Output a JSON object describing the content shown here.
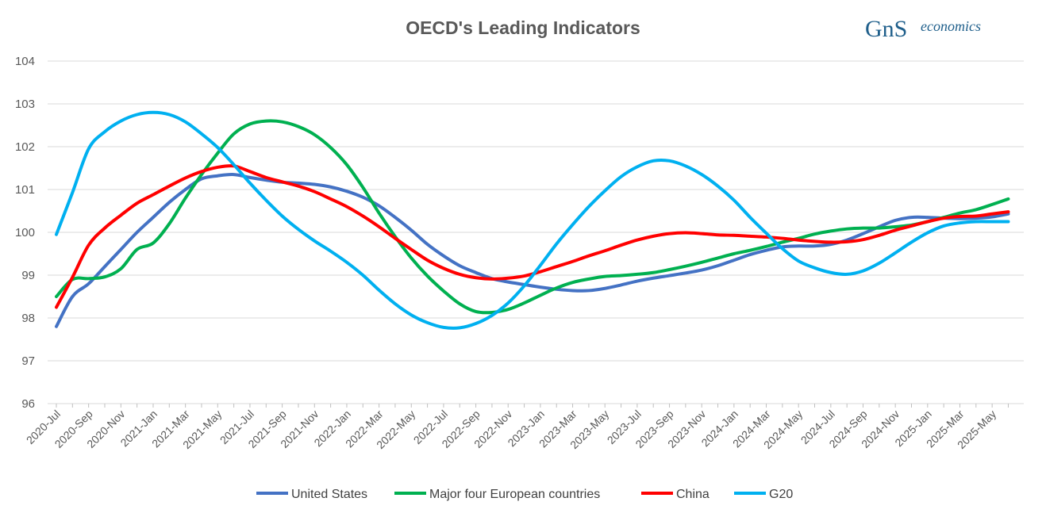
{
  "logo": {
    "mark": "GnS",
    "wordmark": "economics"
  },
  "chart_data": {
    "type": "line",
    "title": "OECD's Leading Indicators",
    "xlabel": "",
    "ylabel": "",
    "ylim": [
      96,
      104
    ],
    "yticks": [
      96,
      97,
      98,
      99,
      100,
      101,
      102,
      103,
      104
    ],
    "grid": true,
    "legend_position": "bottom",
    "categories": [
      "2020-Jul",
      "2020-Aug",
      "2020-Sep",
      "2020-Oct",
      "2020-Nov",
      "2020-Dec",
      "2021-Jan",
      "2021-Feb",
      "2021-Mar",
      "2021-Apr",
      "2021-May",
      "2021-Jun",
      "2021-Jul",
      "2021-Aug",
      "2021-Sep",
      "2021-Oct",
      "2021-Nov",
      "2021-Dec",
      "2022-Jan",
      "2022-Feb",
      "2022-Mar",
      "2022-Apr",
      "2022-May",
      "2022-Jun",
      "2022-Jul",
      "2022-Aug",
      "2022-Sep",
      "2022-Oct",
      "2022-Nov",
      "2022-Dec",
      "2023-Jan",
      "2023-Feb",
      "2023-Mar",
      "2023-Apr",
      "2023-May",
      "2023-Jun",
      "2023-Jul",
      "2023-Aug",
      "2023-Sep",
      "2023-Oct",
      "2023-Nov",
      "2023-Dec",
      "2024-Jan",
      "2024-Feb",
      "2024-Mar",
      "2024-Apr",
      "2024-May",
      "2024-Jun",
      "2024-Jul",
      "2024-Aug",
      "2024-Sep",
      "2024-Oct",
      "2024-Nov",
      "2024-Dec",
      "2025-Jan",
      "2025-Feb",
      "2025-Mar",
      "2025-Apr",
      "2025-May",
      "2025-Jun"
    ],
    "x_tick_labels": [
      "2020-Jul",
      "2020-Sep",
      "2020-Nov",
      "2021-Jan",
      "2021-Mar",
      "2021-May",
      "2021-Jul",
      "2021-Sep",
      "2021-Nov",
      "2022-Jan",
      "2022-Mar",
      "2022-May",
      "2022-Jul",
      "2022-Sep",
      "2022-Nov",
      "2023-Jan",
      "2023-Mar",
      "2023-May",
      "2023-Jul",
      "2023-Sep",
      "2023-Nov",
      "2024-Jan",
      "2024-Mar",
      "2024-May",
      "2024-Jul",
      "2024-Sep",
      "2024-Nov",
      "2025-Jan",
      "2025-Mar",
      "2025-May"
    ],
    "series": [
      {
        "name": "United States",
        "color": "#4472c4",
        "values": [
          97.8,
          98.5,
          98.8,
          99.2,
          99.6,
          100.0,
          100.35,
          100.7,
          101.0,
          101.25,
          101.32,
          101.35,
          101.28,
          101.22,
          101.17,
          101.15,
          101.12,
          101.06,
          100.96,
          100.82,
          100.62,
          100.35,
          100.05,
          99.72,
          99.45,
          99.22,
          99.06,
          98.92,
          98.84,
          98.78,
          98.72,
          98.67,
          98.64,
          98.64,
          98.69,
          98.77,
          98.86,
          98.93,
          98.99,
          99.05,
          99.12,
          99.22,
          99.35,
          99.48,
          99.58,
          99.66,
          99.68,
          99.68,
          99.72,
          99.82,
          99.97,
          100.13,
          100.28,
          100.35,
          100.35,
          100.33,
          100.32,
          100.33,
          100.36,
          100.43
        ]
      },
      {
        "name": "Major four European countries",
        "color": "#00b050",
        "values": [
          98.5,
          98.9,
          98.92,
          98.96,
          99.15,
          99.6,
          99.75,
          100.2,
          100.8,
          101.35,
          101.85,
          102.3,
          102.53,
          102.6,
          102.58,
          102.47,
          102.28,
          101.98,
          101.58,
          101.05,
          100.45,
          99.9,
          99.4,
          98.98,
          98.63,
          98.33,
          98.15,
          98.13,
          98.2,
          98.35,
          98.53,
          98.7,
          98.83,
          98.91,
          98.97,
          98.99,
          99.02,
          99.06,
          99.13,
          99.21,
          99.3,
          99.4,
          99.5,
          99.58,
          99.67,
          99.77,
          99.86,
          99.96,
          100.03,
          100.08,
          100.1,
          100.1,
          100.13,
          100.17,
          100.25,
          100.35,
          100.45,
          100.53,
          100.65,
          100.78
        ]
      },
      {
        "name": "China",
        "color": "#ff0000",
        "values": [
          98.25,
          98.95,
          99.7,
          100.1,
          100.4,
          100.68,
          100.88,
          101.08,
          101.27,
          101.42,
          101.52,
          101.55,
          101.42,
          101.28,
          101.18,
          101.08,
          100.95,
          100.78,
          100.6,
          100.38,
          100.13,
          99.86,
          99.6,
          99.35,
          99.16,
          99.02,
          98.94,
          98.91,
          98.93,
          98.98,
          99.08,
          99.2,
          99.32,
          99.45,
          99.57,
          99.7,
          99.82,
          99.91,
          99.97,
          99.99,
          99.97,
          99.94,
          99.93,
          99.91,
          99.89,
          99.86,
          99.82,
          99.79,
          99.77,
          99.78,
          99.83,
          99.93,
          100.05,
          100.15,
          100.25,
          100.33,
          100.37,
          100.38,
          100.43,
          100.48
        ]
      },
      {
        "name": "G20",
        "color": "#00b0f0",
        "values": [
          99.95,
          100.93,
          101.95,
          102.35,
          102.6,
          102.75,
          102.8,
          102.75,
          102.58,
          102.3,
          101.98,
          101.58,
          101.15,
          100.75,
          100.38,
          100.07,
          99.8,
          99.56,
          99.3,
          99.0,
          98.65,
          98.33,
          98.07,
          97.89,
          97.78,
          97.77,
          97.87,
          98.06,
          98.35,
          98.75,
          99.23,
          99.73,
          100.18,
          100.6,
          100.97,
          101.3,
          101.53,
          101.67,
          101.67,
          101.55,
          101.35,
          101.08,
          100.75,
          100.35,
          99.98,
          99.62,
          99.33,
          99.17,
          99.06,
          99.02,
          99.1,
          99.28,
          99.52,
          99.77,
          99.99,
          100.15,
          100.22,
          100.25,
          100.25,
          100.25
        ]
      }
    ]
  }
}
